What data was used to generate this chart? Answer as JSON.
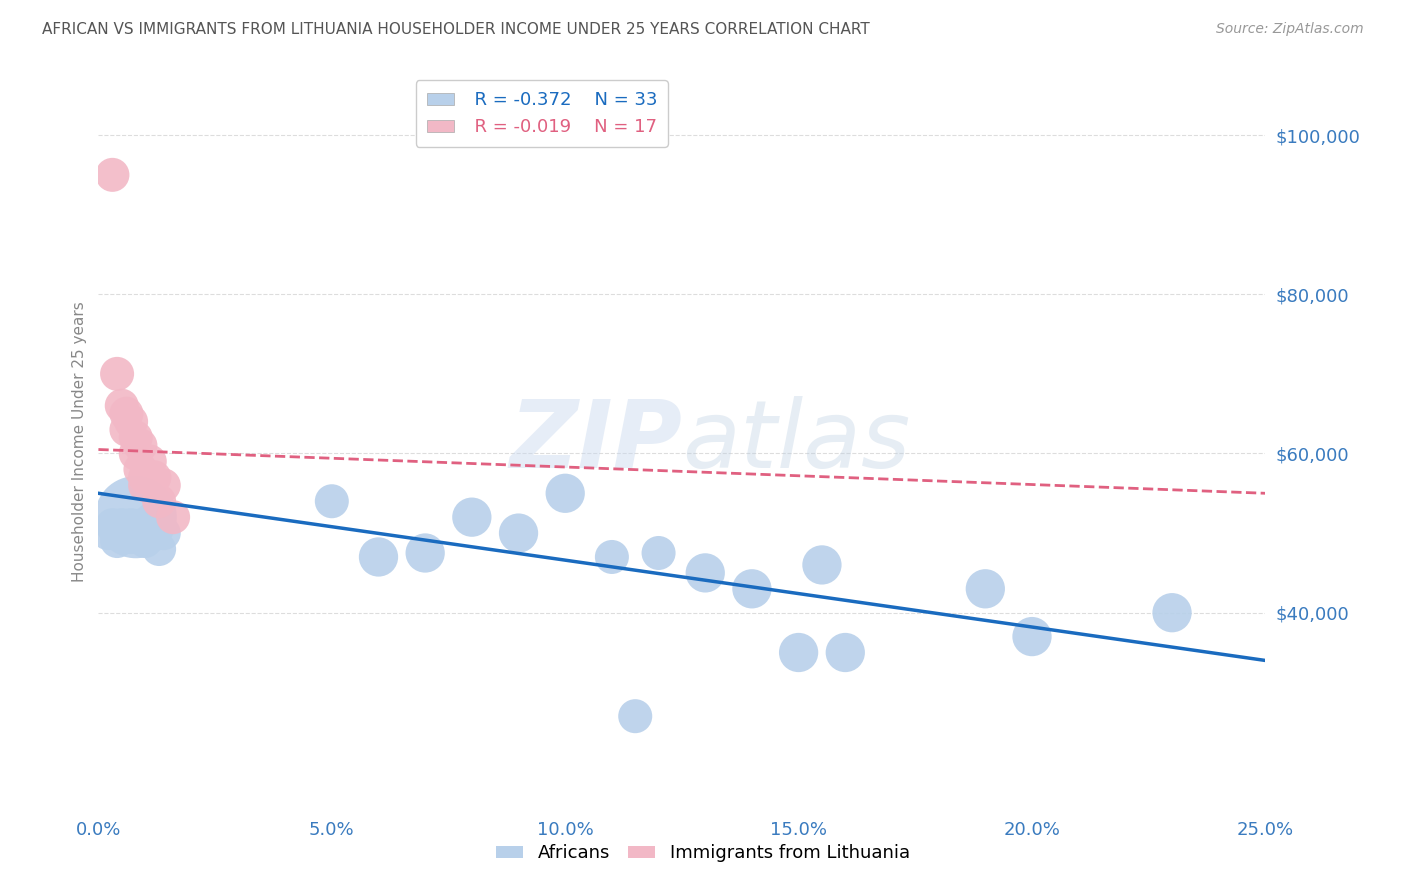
{
  "title": "AFRICAN VS IMMIGRANTS FROM LITHUANIA HOUSEHOLDER INCOME UNDER 25 YEARS CORRELATION CHART",
  "source": "Source: ZipAtlas.com",
  "ylabel": "Householder Income Under 25 years",
  "xlim": [
    0.0,
    0.25
  ],
  "ylim": [
    15000,
    108000
  ],
  "watermark": "ZIPatlas",
  "blue_color": "#b8d0ea",
  "pink_color": "#f2b8c6",
  "blue_line_color": "#1a6bbf",
  "pink_line_color": "#e06080",
  "axis_label_color": "#3a7bbf",
  "title_color": "#555555",
  "source_color": "#999999",
  "legend_R_blue": "-0.372",
  "legend_N_blue": "33",
  "legend_R_pink": "-0.019",
  "legend_N_pink": "17",
  "africans_x": [
    0.002,
    0.003,
    0.004,
    0.005,
    0.005,
    0.006,
    0.007,
    0.007,
    0.008,
    0.009,
    0.01,
    0.01,
    0.011,
    0.012,
    0.013,
    0.014,
    0.05,
    0.06,
    0.07,
    0.08,
    0.09,
    0.1,
    0.11,
    0.115,
    0.12,
    0.13,
    0.14,
    0.15,
    0.155,
    0.16,
    0.19,
    0.2,
    0.23
  ],
  "africans_y": [
    50000,
    51000,
    49000,
    50000,
    51000,
    50500,
    49500,
    51000,
    52000,
    50000,
    49000,
    51000,
    51500,
    52000,
    48000,
    50000,
    54000,
    47000,
    47500,
    52000,
    50000,
    55000,
    47000,
    27000,
    47500,
    45000,
    43000,
    35000,
    46000,
    35000,
    43000,
    37000,
    40000
  ],
  "africans_size": [
    600,
    600,
    600,
    600,
    600,
    600,
    600,
    600,
    3500,
    600,
    600,
    600,
    600,
    600,
    600,
    600,
    600,
    800,
    800,
    800,
    800,
    800,
    600,
    600,
    600,
    800,
    800,
    800,
    800,
    800,
    800,
    800,
    800
  ],
  "lithuania_x": [
    0.003,
    0.004,
    0.005,
    0.006,
    0.006,
    0.007,
    0.008,
    0.008,
    0.009,
    0.009,
    0.01,
    0.01,
    0.011,
    0.012,
    0.013,
    0.014,
    0.016
  ],
  "lithuania_y": [
    95000,
    70000,
    66000,
    65000,
    63000,
    64000,
    60000,
    62000,
    61000,
    58000,
    57000,
    56000,
    59000,
    57000,
    54000,
    56000,
    52000
  ],
  "lithuania_size": [
    600,
    600,
    600,
    600,
    600,
    600,
    600,
    600,
    600,
    600,
    600,
    600,
    600,
    600,
    600,
    600,
    600
  ],
  "blue_regline_x": [
    0.0,
    0.25
  ],
  "blue_regline_y": [
    55000,
    34000
  ],
  "pink_regline_x": [
    0.0,
    0.25
  ],
  "pink_regline_y": [
    60500,
    55000
  ],
  "ytick_vals": [
    40000,
    60000,
    80000,
    100000
  ],
  "ytick_labels": [
    "$40,000",
    "$60,000",
    "$80,000",
    "$100,000"
  ],
  "xtick_vals": [
    0.0,
    0.05,
    0.1,
    0.15,
    0.2,
    0.25
  ],
  "xtick_labels": [
    "0.0%",
    "5.0%",
    "10.0%",
    "15.0%",
    "20.0%",
    "25.0%"
  ]
}
